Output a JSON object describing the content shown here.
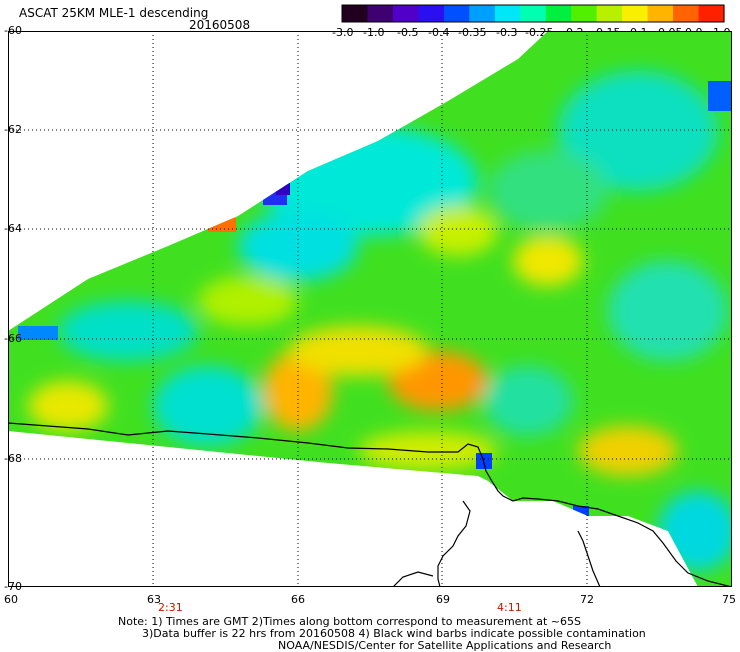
{
  "header": {
    "title": "ASCAT 25KM MLE-1 descending",
    "date": "20160508"
  },
  "colorbar": {
    "labels": [
      "-3.0",
      "-1.0",
      "-0.5",
      "-0.4",
      "-0.35",
      "-0.3",
      "-0.25",
      "-0.2",
      "-0.15",
      "-0.1",
      "-0.05",
      "0.0",
      "1.0"
    ],
    "colors": [
      "#20001e",
      "#3f0070",
      "#5000c8",
      "#2a10f0",
      "#0050ff",
      "#00a0ff",
      "#00e8f8",
      "#00ffb0",
      "#00f040",
      "#50f000",
      "#b8f000",
      "#f8f000",
      "#ffb400",
      "#ff6400",
      "#ff2000"
    ]
  },
  "axes": {
    "lon_ticks": [
      "60",
      "63",
      "66",
      "69",
      "72",
      "75"
    ],
    "lat_ticks": [
      "-60",
      "-62",
      "-64",
      "-66",
      "-68",
      "-70"
    ]
  },
  "times": [
    "2:31",
    "4:11"
  ],
  "notes": [
    "Note: 1) Times are GMT 2)Times along bottom correspond to measurement at ~65S",
    "3)Data buffer is 22 hrs from 20160508 4) Black wind barbs indicate possible contamination",
    "NOAA/NESDIS/Center for Satellite Applications and Research"
  ]
}
